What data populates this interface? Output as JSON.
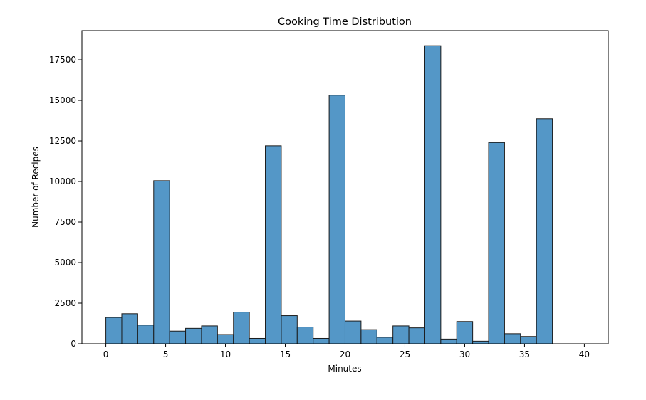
{
  "chart_data": {
    "type": "bar",
    "subtype": "histogram",
    "title": "Cooking Time Distribution",
    "xlabel": "Minutes",
    "ylabel": "Number of Recipes",
    "xlim": [
      -2,
      42
    ],
    "ylim": [
      0,
      19300
    ],
    "xticks": [
      0,
      5,
      10,
      15,
      20,
      25,
      30,
      35,
      40
    ],
    "yticks": [
      0,
      2500,
      5000,
      7500,
      10000,
      12500,
      15000,
      17500
    ],
    "grid": false,
    "bin_start": 0,
    "bin_width": 1.3333,
    "values": [
      1620,
      1850,
      1150,
      10050,
      780,
      950,
      1100,
      570,
      1950,
      330,
      12200,
      1730,
      1030,
      330,
      15320,
      1400,
      870,
      400,
      1100,
      980,
      18370,
      290,
      1370,
      160,
      12400,
      620,
      450,
      13870
    ],
    "bar_color": "#5497c7",
    "edge_color": "#1a1a1a"
  }
}
